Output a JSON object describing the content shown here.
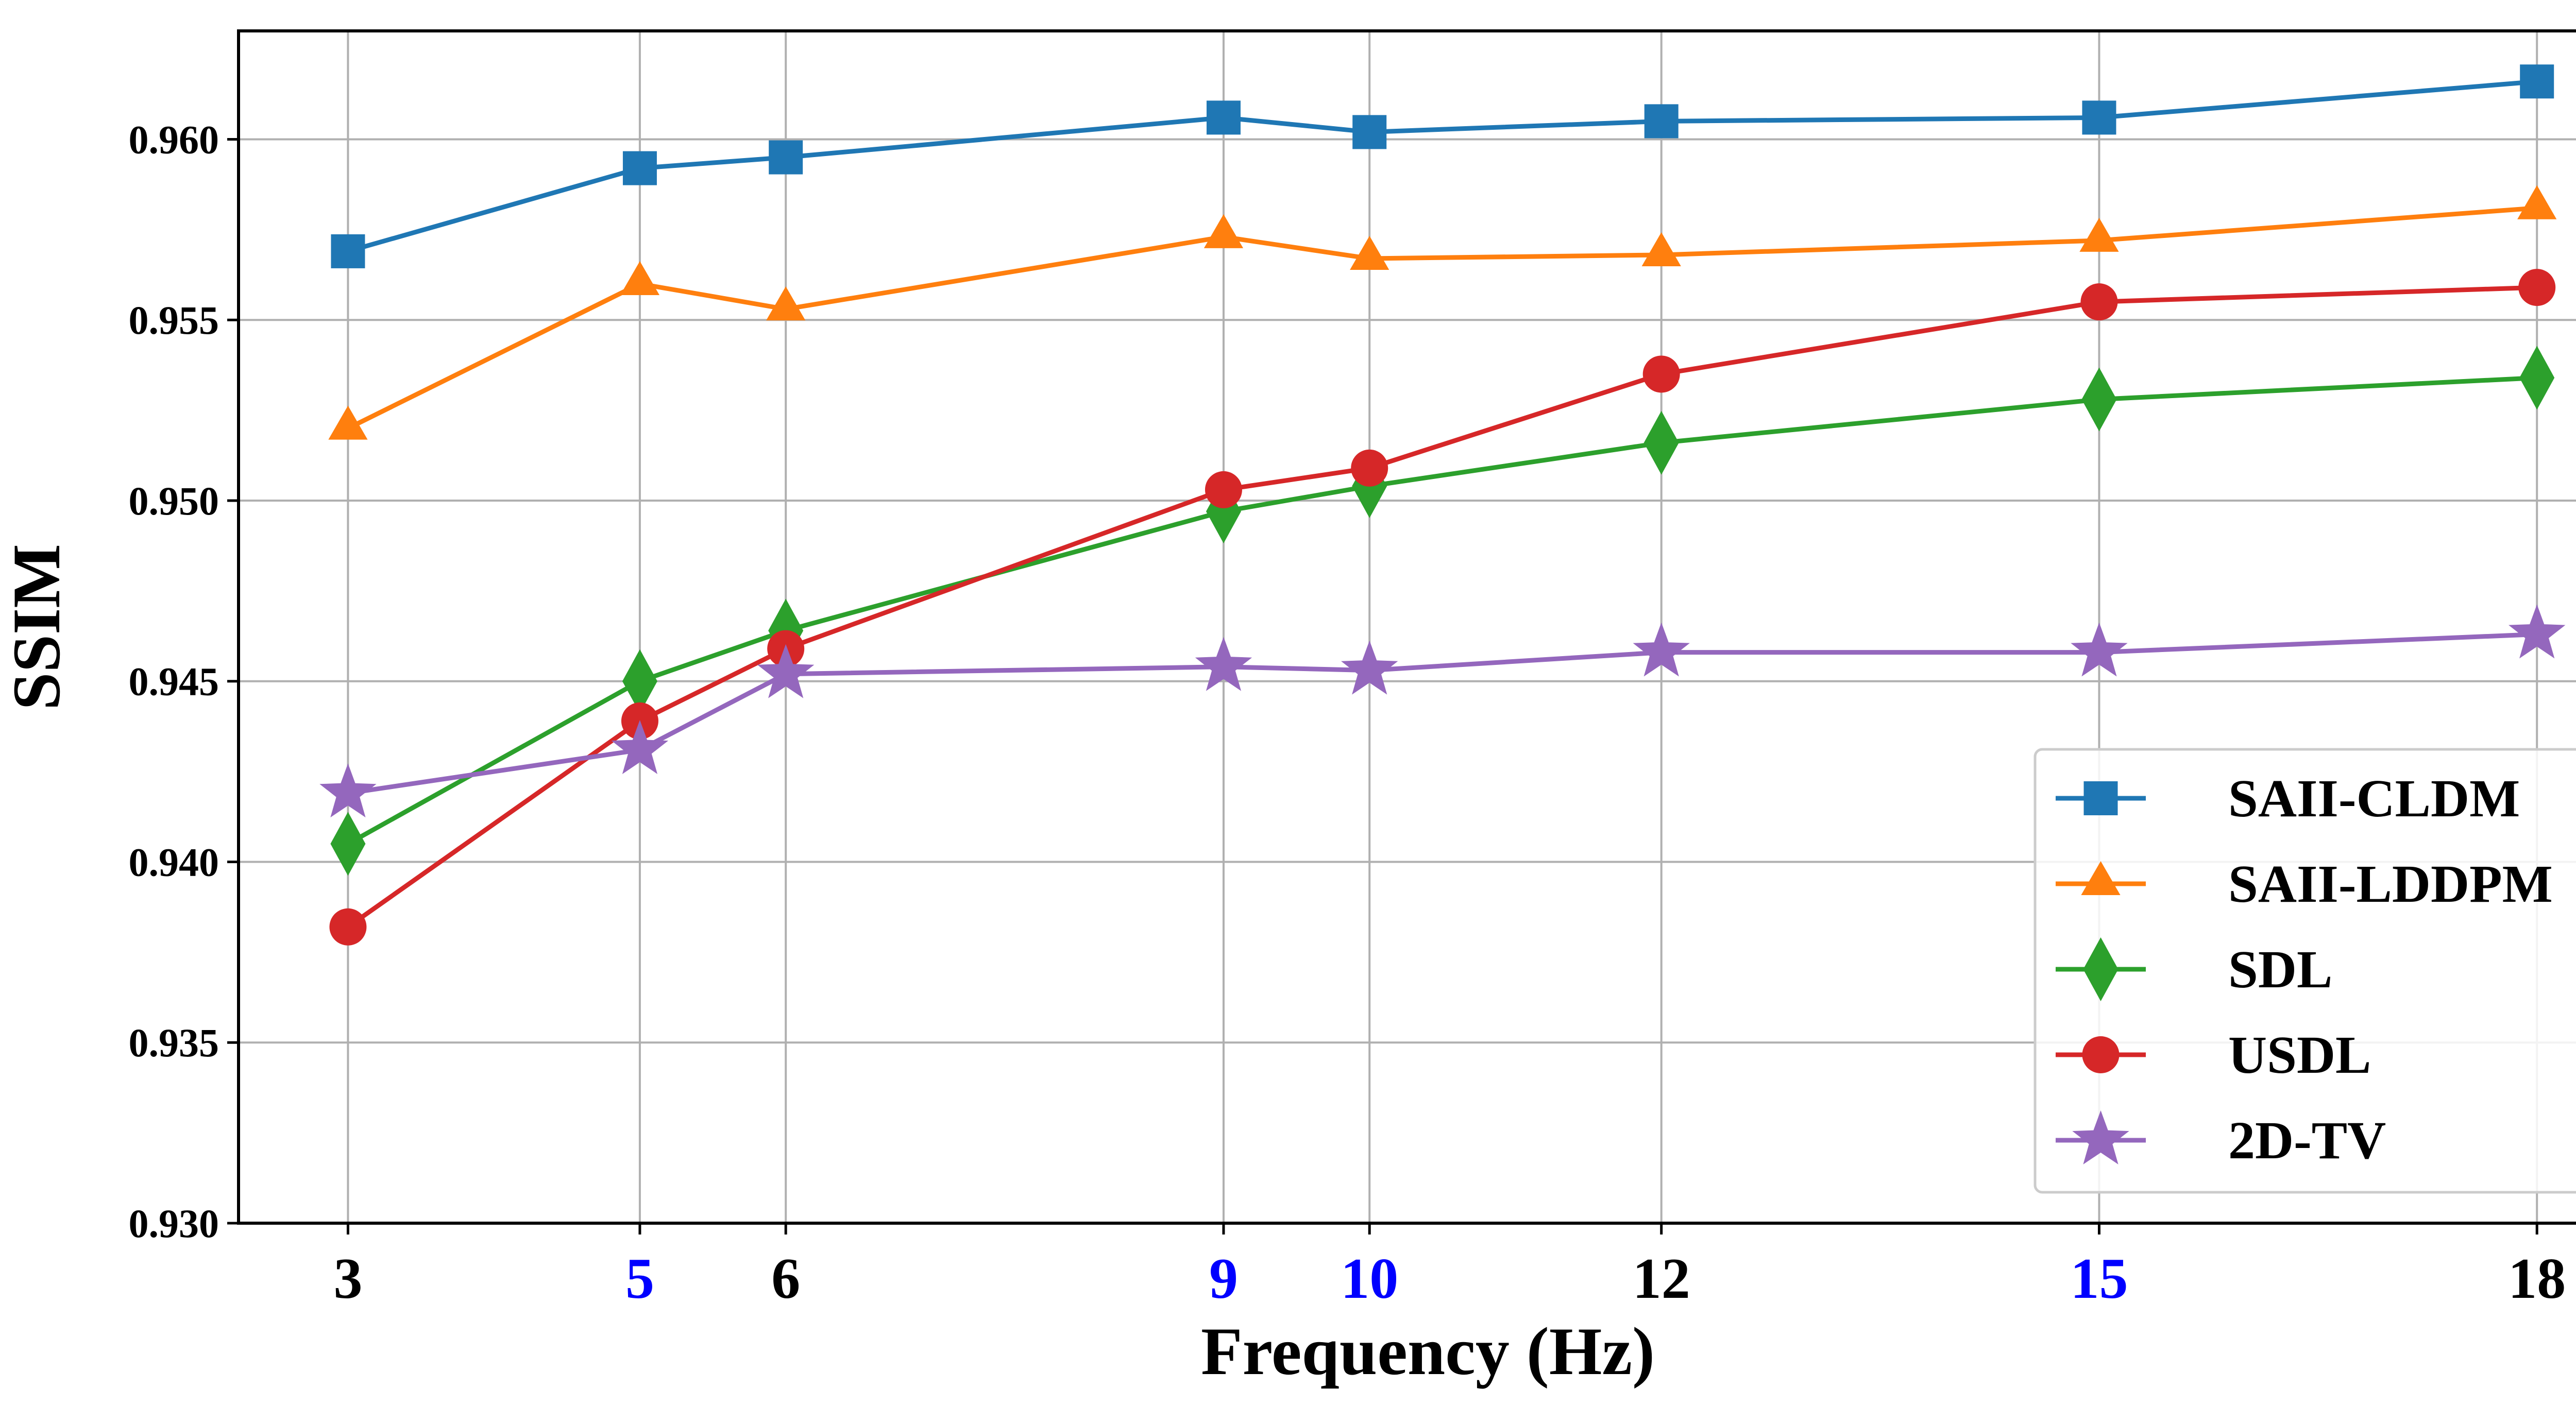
{
  "chart_data": {
    "type": "line",
    "title": "",
    "xlabel": "Frequency (Hz)",
    "ylabel": "SSIM",
    "xlim": [
      2.25,
      18.55
    ],
    "ylim": [
      0.93,
      0.963
    ],
    "grid": true,
    "legend_position": "lower-right",
    "x": [
      3,
      5,
      6,
      9,
      10,
      12,
      15,
      18
    ],
    "x_tick_labels": [
      {
        "label": "3",
        "color": "#000000"
      },
      {
        "label": "5",
        "color": "#0000ff"
      },
      {
        "label": "6",
        "color": "#000000"
      },
      {
        "label": "9",
        "color": "#0000ff"
      },
      {
        "label": "10",
        "color": "#0000ff"
      },
      {
        "label": "12",
        "color": "#000000"
      },
      {
        "label": "15",
        "color": "#0000ff"
      },
      {
        "label": "18",
        "color": "#000000"
      }
    ],
    "y_ticks": [
      0.93,
      0.935,
      0.94,
      0.945,
      0.95,
      0.955,
      0.96
    ],
    "y_tick_labels": [
      "0.930",
      "0.935",
      "0.940",
      "0.945",
      "0.950",
      "0.955",
      "0.960"
    ],
    "series": [
      {
        "name": "SAII-CLDM",
        "color": "#1f77b4",
        "marker": "square",
        "values": [
          0.9569,
          0.9592,
          0.9595,
          0.9606,
          0.9602,
          0.9605,
          0.9606,
          0.9616
        ]
      },
      {
        "name": "SAII-LDDPM",
        "color": "#ff7f0e",
        "marker": "triangle",
        "values": [
          0.952,
          0.956,
          0.9553,
          0.9573,
          0.9567,
          0.9568,
          0.9572,
          0.9581
        ]
      },
      {
        "name": "SDL",
        "color": "#2ca02c",
        "marker": "diamond",
        "values": [
          0.9405,
          0.945,
          0.9464,
          0.9497,
          0.9504,
          0.9516,
          0.9528,
          0.9534
        ]
      },
      {
        "name": "USDL",
        "color": "#d62728",
        "marker": "circle",
        "values": [
          0.9382,
          0.9439,
          0.9459,
          0.9503,
          0.9509,
          0.9535,
          0.9555,
          0.9559
        ]
      },
      {
        "name": "2D-TV",
        "color": "#9467bd",
        "marker": "star",
        "values": [
          0.9419,
          0.9431,
          0.9452,
          0.9454,
          0.9453,
          0.9458,
          0.9458,
          0.9463
        ]
      }
    ]
  }
}
